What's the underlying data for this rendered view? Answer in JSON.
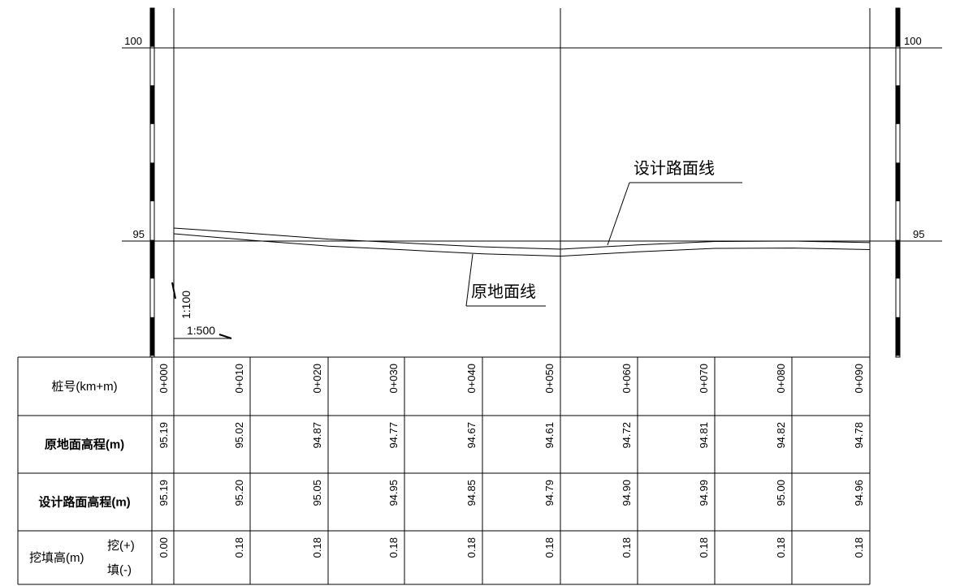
{
  "chart_data": {
    "type": "line",
    "title": "",
    "y_ticks": [
      "100",
      "95"
    ],
    "ylim": [
      92.3,
      101.1
    ],
    "x": [
      0,
      10,
      20,
      30,
      40,
      50,
      60,
      70,
      80,
      90
    ],
    "series": [
      {
        "name": "原地面线",
        "values": [
          95.19,
          95.02,
          94.87,
          94.77,
          94.67,
          94.61,
          94.72,
          94.81,
          94.82,
          94.78
        ]
      },
      {
        "name": "设计路面线",
        "values": [
          95.19,
          95.2,
          95.05,
          94.95,
          94.85,
          94.79,
          94.9,
          94.99,
          95.0,
          94.96
        ]
      }
    ],
    "annotations": {
      "ground_line": "原地面线",
      "design_line": "设计路面线"
    },
    "scale": {
      "vertical": "1:100",
      "horizontal": "1:500"
    }
  },
  "table": {
    "rows": [
      {
        "label": "桩号(km+m)",
        "values": [
          "0+000",
          "0+010",
          "0+020",
          "0+030",
          "0+040",
          "0+050",
          "0+060",
          "0+070",
          "0+080",
          "0+090"
        ]
      },
      {
        "label": "原地面高程(m)",
        "values": [
          "95.19",
          "95.02",
          "94.87",
          "94.77",
          "94.67",
          "94.61",
          "94.72",
          "94.81",
          "94.82",
          "94.78"
        ]
      },
      {
        "label": "设计路面高程(m)",
        "values": [
          "95.19",
          "95.20",
          "95.05",
          "94.95",
          "94.85",
          "94.79",
          "94.90",
          "94.99",
          "95.00",
          "94.96"
        ]
      },
      {
        "label": "挖填高(m)",
        "sublabel_top": "挖(+)",
        "sublabel_bottom": "填(-)",
        "values": [
          "0.00",
          "0.18",
          "0.18",
          "0.18",
          "0.18",
          "0.18",
          "0.18",
          "0.18",
          "0.18",
          "0.18"
        ]
      }
    ]
  }
}
